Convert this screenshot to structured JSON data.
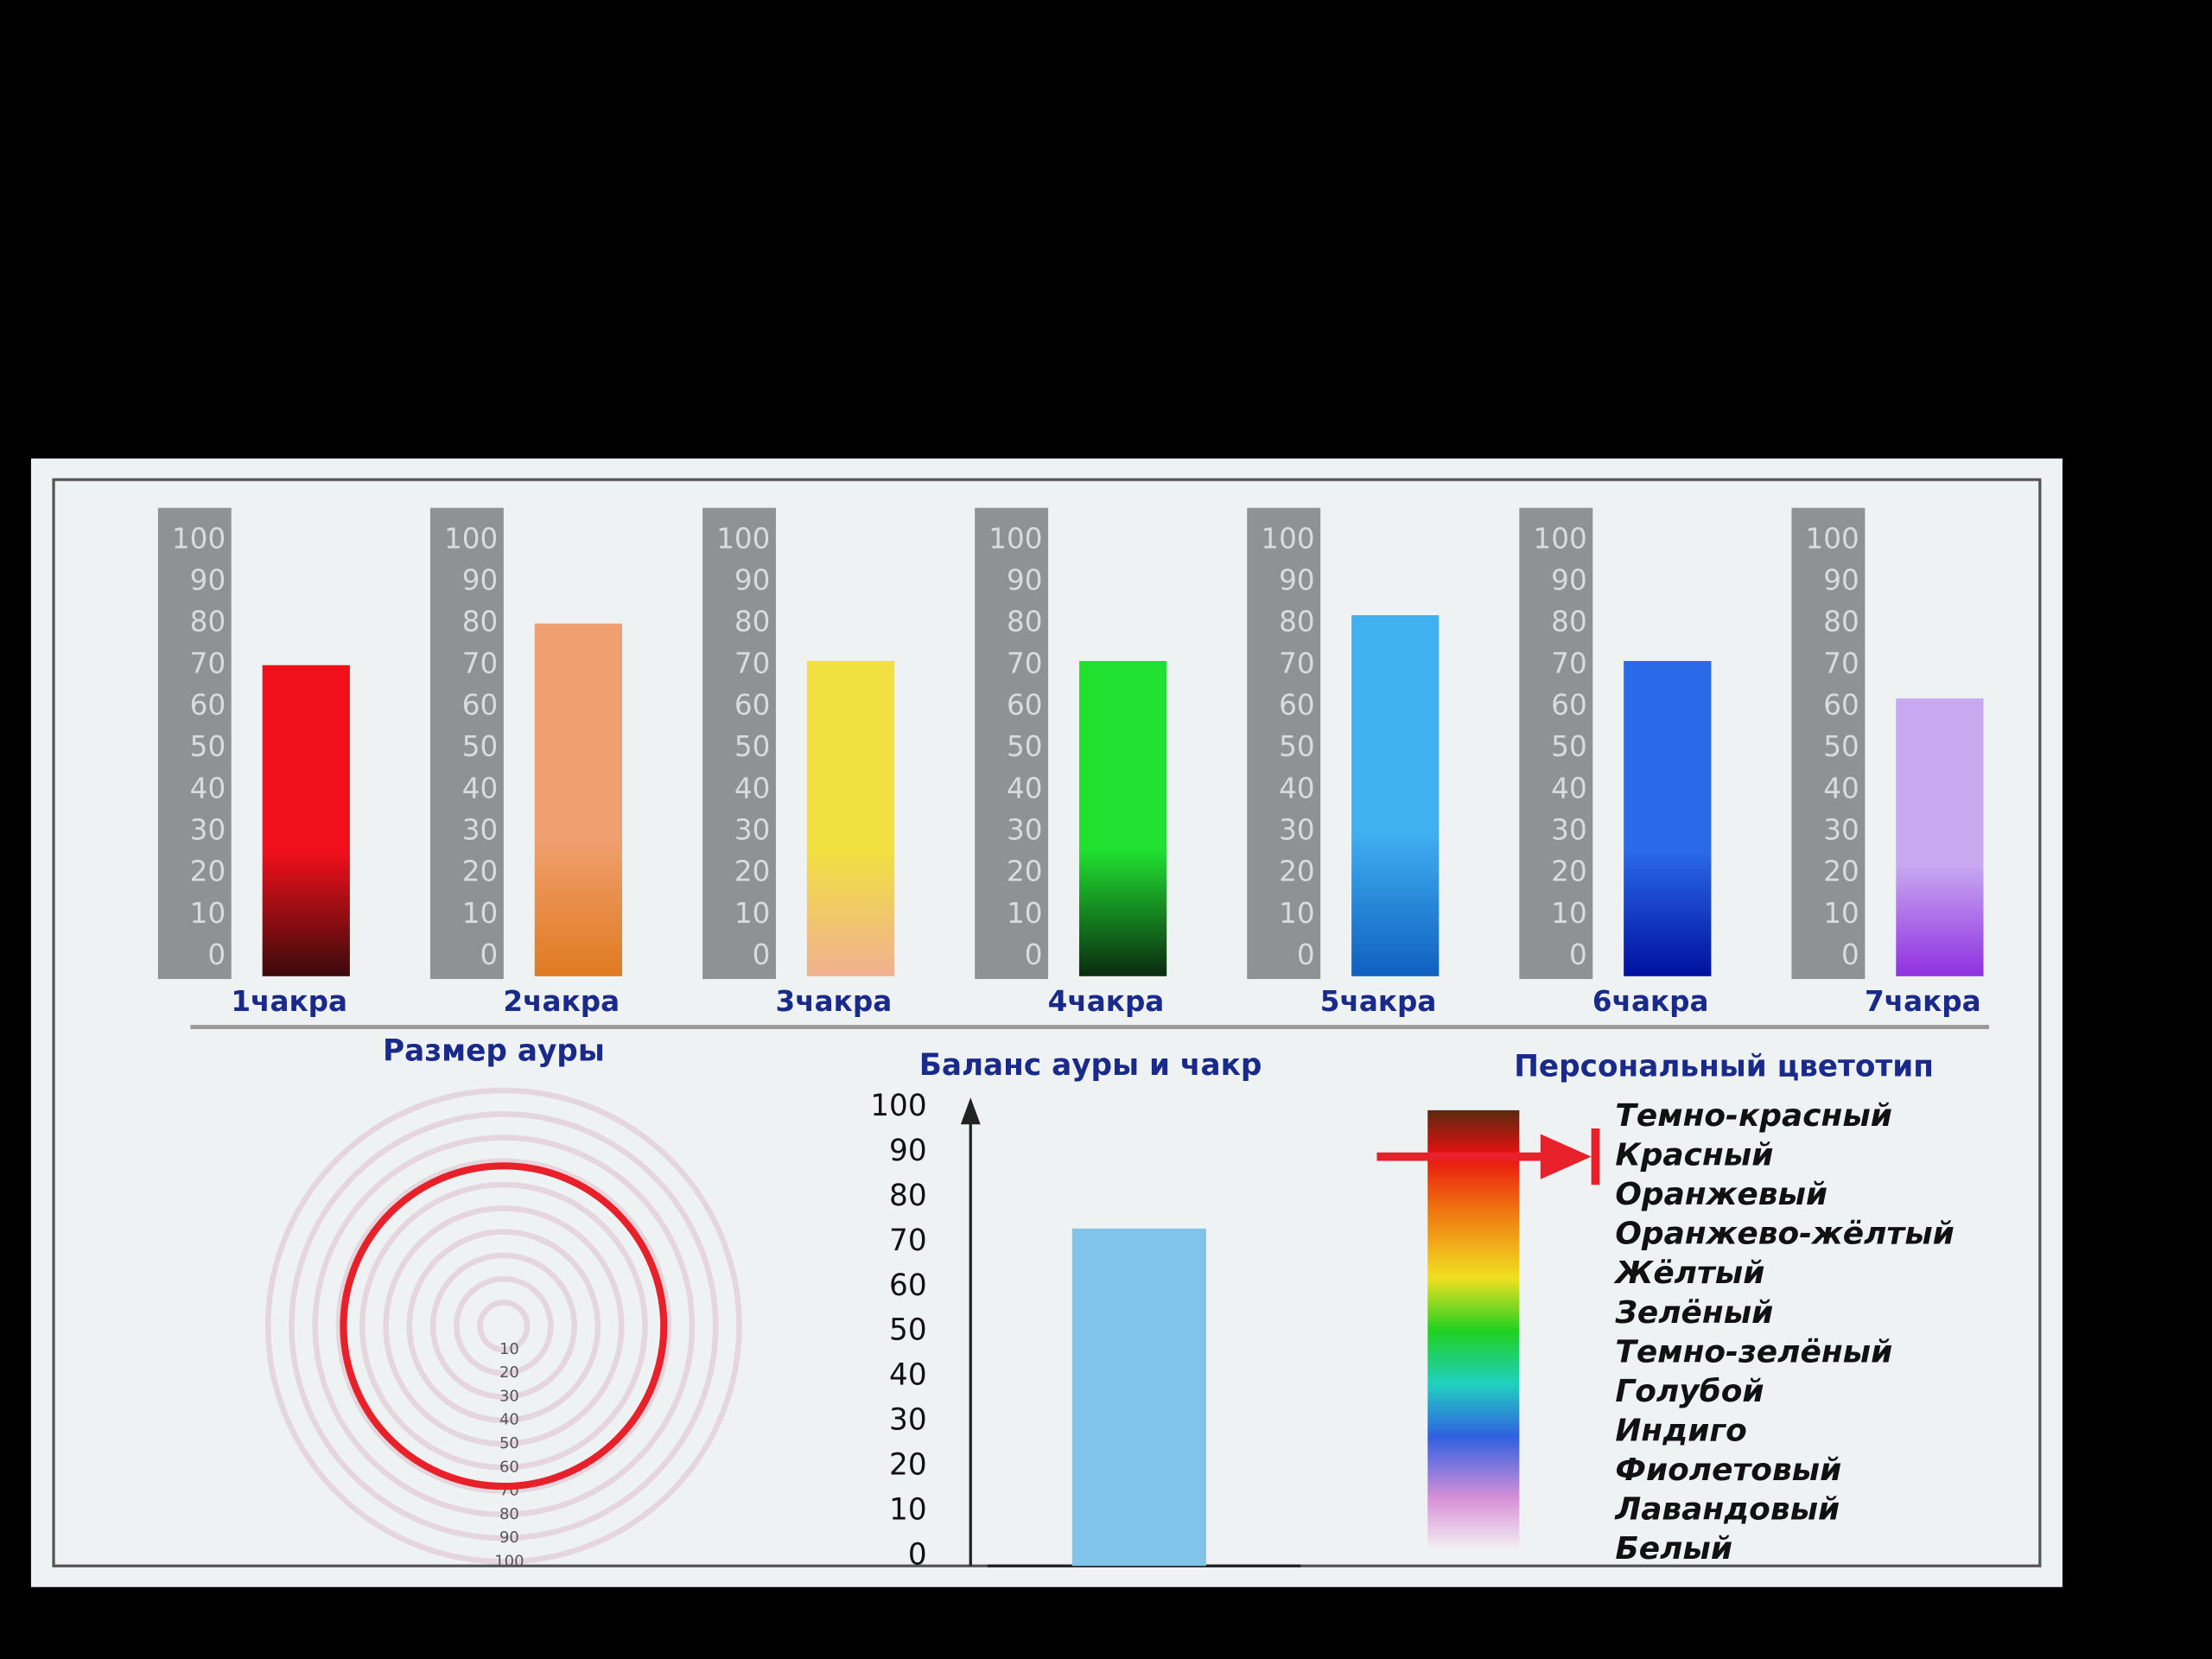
{
  "chart_data": [
    {
      "type": "bar",
      "categories": [
        "1чакра",
        "2чакра",
        "3чакра",
        "4чакра",
        "5чакра",
        "6чакра",
        "7чакра"
      ],
      "values": [
        70,
        80,
        71,
        71,
        82,
        71,
        62
      ],
      "colors": [
        [
          "#f0101c",
          "#3a0a0a"
        ],
        [
          "#f0a070",
          "#e07a20"
        ],
        [
          "#f0e040",
          "#f0b090"
        ],
        [
          "#20e030",
          "#0a2a10"
        ],
        [
          "#40b0f0",
          "#1060c0"
        ],
        [
          "#2a6ae8",
          "#0010a0"
        ],
        [
          "#c8a8f0",
          "#9030e0"
        ]
      ],
      "ylim": [
        0,
        100
      ],
      "yticks": [
        0,
        10,
        20,
        30,
        40,
        50,
        60,
        70,
        80,
        90,
        100
      ]
    },
    {
      "type": "radial",
      "title": "Размер ауры",
      "value": 68,
      "color": "#e8202a",
      "rlim": [
        0,
        100
      ],
      "rticks": [
        10,
        20,
        30,
        40,
        50,
        60,
        70,
        80,
        90,
        100
      ]
    },
    {
      "type": "bar",
      "title": "Баланс ауры и чакр",
      "values": [
        73
      ],
      "color": "#80c4ec",
      "ylim": [
        0,
        100
      ],
      "yticks": [
        0,
        10,
        20,
        30,
        40,
        50,
        60,
        70,
        80,
        90,
        100
      ]
    },
    {
      "type": "scale",
      "title": "Персональный цветотип",
      "categories": [
        "Темно-красный",
        "Красный",
        "Оранжевый",
        "Оранжево-жёлтый",
        "Жёлтый",
        "Зелёный",
        "Темно-зелёный",
        "Голубой",
        "Индиго",
        "Фиолетовый",
        "Лавандовый",
        "Белый"
      ],
      "selected_index": 1,
      "color": "#e8202a"
    }
  ]
}
